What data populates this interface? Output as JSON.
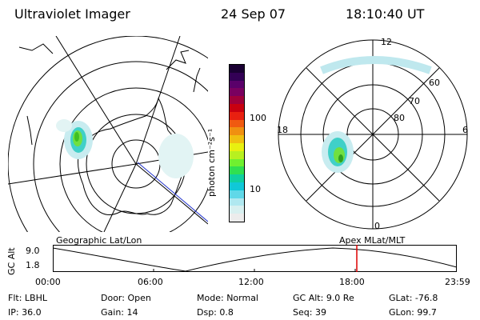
{
  "header": {
    "instrument": "Ultraviolet Imager",
    "date": "24 Sep 07",
    "time": "18:10:40 UT"
  },
  "colorbar": {
    "unit_label": "photon cm⁻²s⁻¹",
    "ticks": [
      "100",
      "10"
    ],
    "colors": [
      "#1a0033",
      "#330055",
      "#5a006a",
      "#7a0060",
      "#a0003a",
      "#c80010",
      "#e82010",
      "#f05a10",
      "#f09010",
      "#f0c010",
      "#e8f010",
      "#b8f020",
      "#70f030",
      "#30e050",
      "#10d0a0",
      "#10c8d8",
      "#60d8e8",
      "#b0e8f0",
      "#d8f0f0",
      "#ececec"
    ]
  },
  "left_map": {
    "label": "Geographic Lat/Lon"
  },
  "right_map": {
    "label": "Apex MLat/MLT",
    "mlt_labels": {
      "top": "12",
      "left": "18",
      "right": "6",
      "bottom": "0"
    },
    "lat_labels": [
      "60",
      "70",
      "80"
    ]
  },
  "altitude_plot": {
    "ylabel": "GC Alt",
    "y_ticks": [
      "9.0",
      "1.8"
    ],
    "x_ticks": [
      "00:00",
      "06:00",
      "12:00",
      "18:00",
      "23:59"
    ],
    "marker_color": "#dd0000"
  },
  "status": {
    "row1": [
      {
        "key": "Flt:",
        "value": "LBHL"
      },
      {
        "key": "Door:",
        "value": "Open"
      },
      {
        "key": "Mode:",
        "value": "Normal"
      },
      {
        "key": "GC Alt:",
        "value": "9.0 Re"
      },
      {
        "key": "GLat:",
        "value": "-76.8"
      }
    ],
    "row2": [
      {
        "key": "IP:",
        "value": "36.0"
      },
      {
        "key": "Gain:",
        "value": "14"
      },
      {
        "key": "Dsp:",
        "value": "0.8"
      },
      {
        "key": "Seq:",
        "value": "39"
      },
      {
        "key": "GLon:",
        "value": "99.7"
      }
    ]
  }
}
